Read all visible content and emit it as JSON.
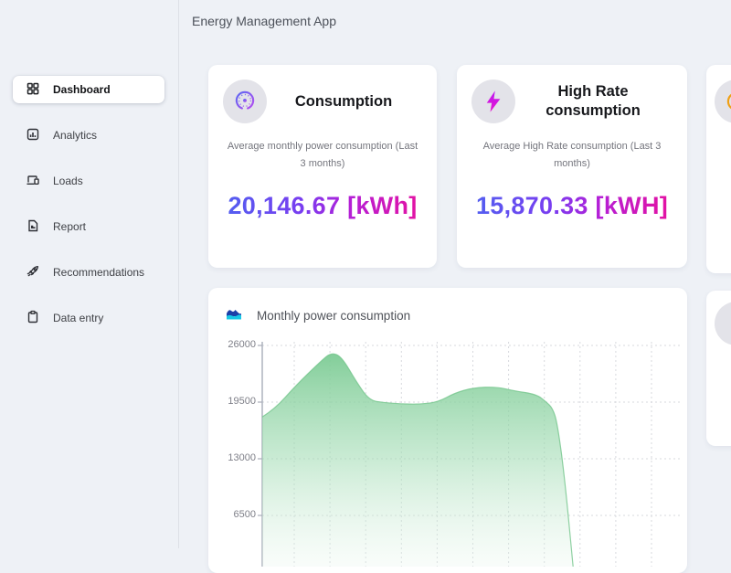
{
  "app": {
    "title": "Energy Management App"
  },
  "sidebar": {
    "items": [
      {
        "label": "Dashboard",
        "icon": "grid-icon",
        "active": true
      },
      {
        "label": "Analytics",
        "icon": "bar-chart-icon",
        "active": false
      },
      {
        "label": "Loads",
        "icon": "devices-icon",
        "active": false
      },
      {
        "label": "Report",
        "icon": "report-icon",
        "active": false
      },
      {
        "label": "Recommendations",
        "icon": "rocket-icon",
        "active": false
      },
      {
        "label": "Data entry",
        "icon": "clipboard-icon",
        "active": false
      }
    ]
  },
  "cards": [
    {
      "title": "Consumption",
      "subtitle": "Average monthly power consumption (Last 3 months)",
      "value": "20,146.67 [kWh]",
      "icon": "gauge-icon"
    },
    {
      "title": "High Rate consumption",
      "subtitle": "Average High Rate consumption (Last 3 months)",
      "value": "15,870.33 [kWH]",
      "icon": "lightning-icon"
    },
    {
      "title": "",
      "subtitle": "",
      "value": "",
      "icon": "coin-icon"
    }
  ],
  "colors": {
    "background": "#eef1f6",
    "card": "#ffffff",
    "value_gradient": [
      "#4a66f0",
      "#7a3cf0",
      "#b51fd6",
      "#ef0f96"
    ],
    "area_green": "#7fcd97",
    "bolt_magenta": "#cc17f2",
    "gauge_gradient": [
      "#5b67f2",
      "#a34df2"
    ],
    "coin_amber": "#f0a015",
    "chart_icon_navy": "#1d3fa8",
    "chart_icon_cyan": "#18c8e6",
    "icon_circle_bg": "#e3e3e9"
  },
  "chart_data": {
    "type": "area",
    "title": "Monthly power consumption",
    "icon": "area-chart-icon",
    "legend": "none",
    "grid": "dashed",
    "x_tick_labels_visible": false,
    "y_ticks": [
      26000,
      19500,
      13000,
      6500
    ],
    "y_axis_top": 26000,
    "y_tick_interval": 6500,
    "v_gridline_count": 11,
    "points": [
      {
        "x_frac": 0.0,
        "kwh": 17800
      },
      {
        "x_frac": 0.03,
        "kwh": 18700
      },
      {
        "x_frac": 0.08,
        "kwh": 21400
      },
      {
        "x_frac": 0.14,
        "kwh": 24200
      },
      {
        "x_frac": 0.165,
        "kwh": 25200
      },
      {
        "x_frac": 0.19,
        "kwh": 24700
      },
      {
        "x_frac": 0.225,
        "kwh": 21800
      },
      {
        "x_frac": 0.256,
        "kwh": 19700
      },
      {
        "x_frac": 0.29,
        "kwh": 19450
      },
      {
        "x_frac": 0.33,
        "kwh": 19300
      },
      {
        "x_frac": 0.375,
        "kwh": 19250
      },
      {
        "x_frac": 0.42,
        "kwh": 19500
      },
      {
        "x_frac": 0.46,
        "kwh": 20550
      },
      {
        "x_frac": 0.505,
        "kwh": 21150
      },
      {
        "x_frac": 0.56,
        "kwh": 21250
      },
      {
        "x_frac": 0.6,
        "kwh": 20800
      },
      {
        "x_frac": 0.655,
        "kwh": 20400
      },
      {
        "x_frac": 0.679,
        "kwh": 19500
      },
      {
        "x_frac": 0.694,
        "kwh": 18770
      },
      {
        "x_frac": 0.705,
        "kwh": 17090
      },
      {
        "x_frac": 0.722,
        "kwh": 11110
      },
      {
        "x_frac": 0.744,
        "kwh": 0
      }
    ]
  }
}
